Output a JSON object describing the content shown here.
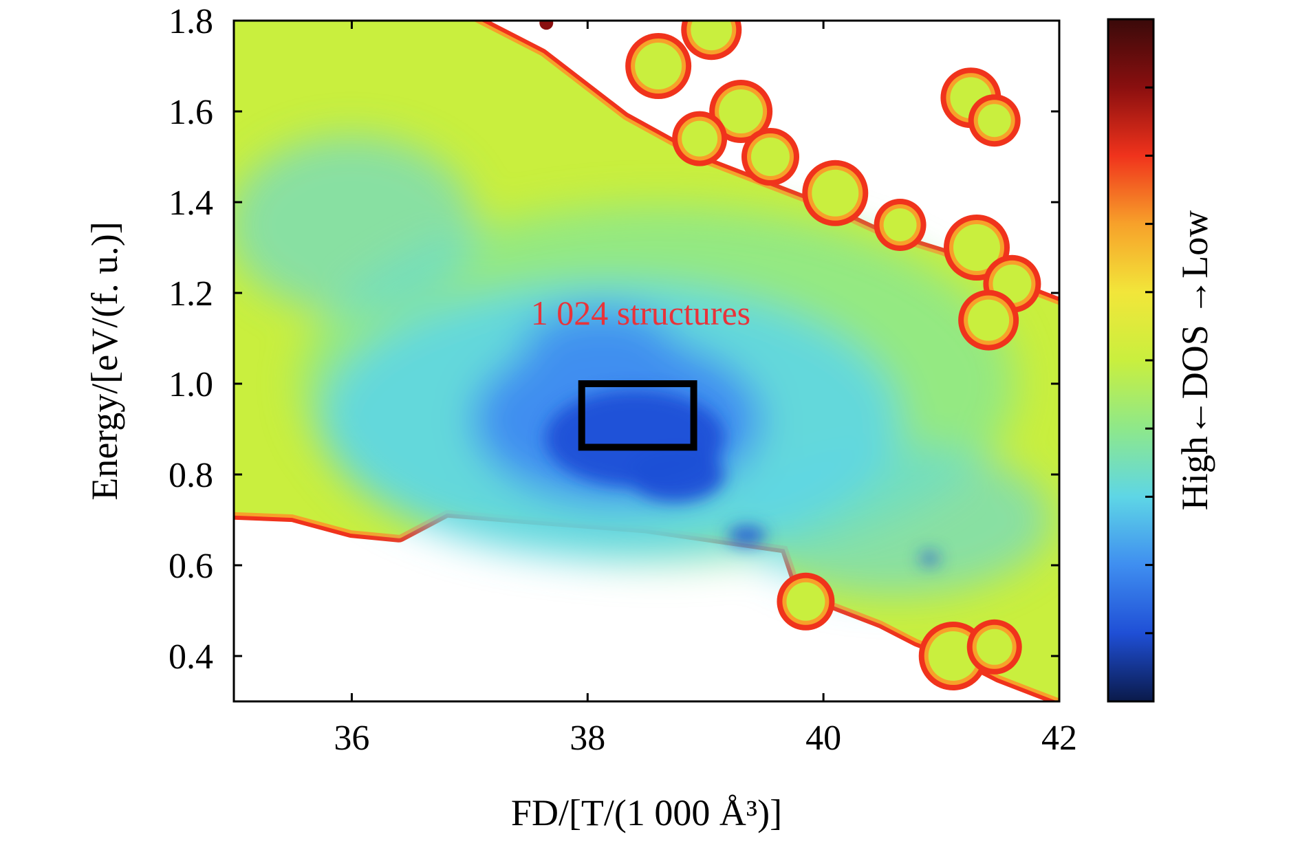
{
  "chart_data": {
    "type": "heatmap",
    "title": "",
    "xlabel": "FD/[T/(1 000 Å³)]",
    "ylabel": "Energy/[eV/(f. u.)]",
    "xlim": [
      35,
      42
    ],
    "ylim": [
      0.3,
      1.8
    ],
    "xticks": [
      36,
      38,
      40,
      42
    ],
    "xtick_labels": [
      "36",
      "38",
      "40",
      "42"
    ],
    "yticks": [
      0.4,
      0.6,
      0.8,
      1.0,
      1.2,
      1.4,
      1.6,
      1.8
    ],
    "ytick_labels": [
      "0.4",
      "0.6",
      "0.8",
      "1.0",
      "1.2",
      "1.4",
      "1.6",
      "1.8"
    ],
    "colorbar": {
      "label": "High←DOS →Low",
      "colors": [
        "#0a1a4a",
        "#1f4fd6",
        "#3f8ef0",
        "#5ed6e6",
        "#8ee88a",
        "#c9ef3e",
        "#f2e63a",
        "#f7a12a",
        "#f0331c",
        "#8a0f0f",
        "#3a0a0a"
      ]
    },
    "annotation": {
      "text": "1 024 structures",
      "x": 38.45,
      "y": 1.13,
      "color": "#e8333a"
    },
    "highlight_box": {
      "x": [
        37.95,
        38.9
      ],
      "y": [
        0.86,
        1.0
      ]
    },
    "density_regions": {
      "lower_boundary": [
        [
          35,
          0.72
        ],
        [
          35.5,
          0.715
        ],
        [
          36.0,
          0.68
        ],
        [
          36.4,
          0.67
        ],
        [
          36.8,
          0.725
        ],
        [
          37.5,
          0.71
        ],
        [
          38.5,
          0.69
        ],
        [
          39.3,
          0.66
        ],
        [
          39.7,
          0.645
        ],
        [
          39.85,
          0.53
        ],
        [
          40.1,
          0.52
        ],
        [
          40.5,
          0.48
        ],
        [
          40.8,
          0.44
        ],
        [
          41.2,
          0.4
        ],
        [
          41.5,
          0.36
        ],
        [
          41.8,
          0.33
        ],
        [
          42,
          0.31
        ]
      ],
      "upper_boundary": [
        [
          35,
          1.8
        ],
        [
          37.0,
          1.8
        ],
        [
          37.6,
          1.72
        ],
        [
          38.3,
          1.58
        ],
        [
          39.0,
          1.48
        ],
        [
          39.5,
          1.43
        ],
        [
          40.0,
          1.38
        ],
        [
          40.5,
          1.32
        ],
        [
          41.0,
          1.28
        ],
        [
          41.5,
          1.22
        ],
        [
          42,
          1.17
        ]
      ],
      "high_density_center": {
        "x": 38.4,
        "y": 0.88
      }
    }
  }
}
